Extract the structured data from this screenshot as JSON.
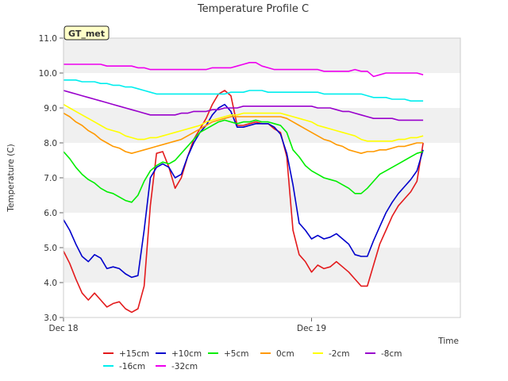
{
  "chart_data": {
    "type": "line",
    "title": "Temperature Profile C",
    "xlabel": "Time",
    "ylabel": "Temperature (C)",
    "xlim": [
      0,
      1.6
    ],
    "ylim": [
      3.0,
      11.0
    ],
    "yticks": [
      "3.0",
      "4.0",
      "5.0",
      "6.0",
      "7.0",
      "8.0",
      "9.0",
      "10.0",
      "11.0"
    ],
    "xticks": [
      {
        "label": "Dec 18",
        "value": 0
      },
      {
        "label": "Dec 19",
        "value": 1
      }
    ],
    "grid": "horizontal bands",
    "legend_position": "bottom",
    "annotation": "GT_met",
    "x": [
      0.0,
      0.025,
      0.05,
      0.075,
      0.1,
      0.125,
      0.15,
      0.175,
      0.2,
      0.225,
      0.25,
      0.275,
      0.3,
      0.325,
      0.35,
      0.375,
      0.4,
      0.425,
      0.45,
      0.475,
      0.5,
      0.525,
      0.55,
      0.575,
      0.6,
      0.625,
      0.65,
      0.675,
      0.7,
      0.725,
      0.75,
      0.775,
      0.8,
      0.825,
      0.85,
      0.875,
      0.9,
      0.925,
      0.95,
      0.975,
      1.0,
      1.025,
      1.05,
      1.075,
      1.1,
      1.125,
      1.15,
      1.175,
      1.2,
      1.225,
      1.25,
      1.275,
      1.3,
      1.325,
      1.35,
      1.375,
      1.4,
      1.425,
      1.45
    ],
    "series": [
      {
        "name": "+15cm",
        "color": "#e31a1c",
        "values": [
          4.9,
          4.55,
          4.1,
          3.7,
          3.5,
          3.7,
          3.5,
          3.3,
          3.4,
          3.45,
          3.25,
          3.15,
          3.25,
          3.9,
          6.2,
          7.7,
          7.75,
          7.3,
          6.7,
          7.0,
          7.6,
          8.1,
          8.4,
          8.7,
          9.1,
          9.4,
          9.5,
          9.35,
          8.5,
          8.5,
          8.55,
          8.6,
          8.55,
          8.55,
          8.4,
          8.3,
          7.6,
          5.5,
          4.8,
          4.6,
          4.3,
          4.5,
          4.4,
          4.45,
          4.6,
          4.45,
          4.3,
          4.1,
          3.9,
          3.9,
          4.5,
          5.1,
          5.5,
          5.9,
          6.2,
          6.4,
          6.6,
          6.9,
          8.0
        ]
      },
      {
        "name": "+10cm",
        "color": "#0000cc",
        "values": [
          5.8,
          5.5,
          5.1,
          4.75,
          4.6,
          4.8,
          4.7,
          4.4,
          4.45,
          4.4,
          4.25,
          4.15,
          4.2,
          5.5,
          7.0,
          7.3,
          7.4,
          7.3,
          7.0,
          7.1,
          7.6,
          8.0,
          8.3,
          8.5,
          8.8,
          9.0,
          9.1,
          8.9,
          8.45,
          8.45,
          8.5,
          8.55,
          8.55,
          8.55,
          8.45,
          8.25,
          7.7,
          6.8,
          5.7,
          5.5,
          5.25,
          5.35,
          5.25,
          5.3,
          5.4,
          5.25,
          5.1,
          4.8,
          4.75,
          4.75,
          5.2,
          5.6,
          6.0,
          6.3,
          6.55,
          6.75,
          6.95,
          7.2,
          7.8
        ]
      },
      {
        "name": "+5cm",
        "color": "#00ee00",
        "values": [
          7.75,
          7.55,
          7.3,
          7.1,
          6.95,
          6.85,
          6.7,
          6.6,
          6.55,
          6.45,
          6.35,
          6.3,
          6.5,
          6.9,
          7.2,
          7.35,
          7.45,
          7.4,
          7.5,
          7.7,
          7.9,
          8.1,
          8.3,
          8.4,
          8.5,
          8.6,
          8.65,
          8.6,
          8.55,
          8.6,
          8.6,
          8.65,
          8.6,
          8.6,
          8.55,
          8.5,
          8.3,
          7.8,
          7.6,
          7.35,
          7.2,
          7.1,
          7.0,
          6.95,
          6.9,
          6.8,
          6.7,
          6.55,
          6.55,
          6.7,
          6.9,
          7.1,
          7.2,
          7.3,
          7.4,
          7.5,
          7.6,
          7.7,
          7.75
        ]
      },
      {
        "name": "0cm",
        "color": "#ff9900",
        "values": [
          8.85,
          8.75,
          8.6,
          8.5,
          8.35,
          8.25,
          8.1,
          8.0,
          7.9,
          7.85,
          7.75,
          7.7,
          7.75,
          7.8,
          7.85,
          7.9,
          7.95,
          8.0,
          8.05,
          8.1,
          8.2,
          8.3,
          8.4,
          8.5,
          8.6,
          8.65,
          8.7,
          8.75,
          8.75,
          8.75,
          8.75,
          8.75,
          8.75,
          8.75,
          8.75,
          8.75,
          8.7,
          8.6,
          8.5,
          8.4,
          8.3,
          8.2,
          8.1,
          8.05,
          7.95,
          7.9,
          7.8,
          7.75,
          7.7,
          7.75,
          7.75,
          7.8,
          7.8,
          7.85,
          7.9,
          7.9,
          7.95,
          8.0,
          8.0
        ]
      },
      {
        "name": "-2cm",
        "color": "#ffff00",
        "values": [
          9.1,
          9.0,
          8.9,
          8.8,
          8.7,
          8.6,
          8.5,
          8.4,
          8.35,
          8.3,
          8.2,
          8.15,
          8.1,
          8.1,
          8.15,
          8.15,
          8.2,
          8.25,
          8.3,
          8.35,
          8.4,
          8.45,
          8.5,
          8.6,
          8.65,
          8.7,
          8.75,
          8.8,
          8.8,
          8.85,
          8.85,
          8.85,
          8.85,
          8.85,
          8.85,
          8.85,
          8.8,
          8.75,
          8.7,
          8.65,
          8.6,
          8.5,
          8.45,
          8.4,
          8.35,
          8.3,
          8.25,
          8.2,
          8.1,
          8.05,
          8.05,
          8.05,
          8.05,
          8.05,
          8.1,
          8.1,
          8.15,
          8.15,
          8.2
        ]
      },
      {
        "name": "-8cm",
        "color": "#9900cc",
        "values": [
          9.5,
          9.45,
          9.4,
          9.35,
          9.3,
          9.25,
          9.2,
          9.15,
          9.1,
          9.05,
          9.0,
          8.95,
          8.9,
          8.85,
          8.8,
          8.8,
          8.8,
          8.8,
          8.8,
          8.85,
          8.85,
          8.9,
          8.9,
          8.9,
          8.95,
          8.95,
          9.0,
          9.0,
          9.0,
          9.05,
          9.05,
          9.05,
          9.05,
          9.05,
          9.05,
          9.05,
          9.05,
          9.05,
          9.05,
          9.05,
          9.05,
          9.0,
          9.0,
          9.0,
          8.95,
          8.9,
          8.9,
          8.85,
          8.8,
          8.75,
          8.7,
          8.7,
          8.7,
          8.7,
          8.65,
          8.65,
          8.65,
          8.65,
          8.65
        ]
      },
      {
        "name": "-16cm",
        "color": "#00eeee",
        "values": [
          9.8,
          9.8,
          9.8,
          9.75,
          9.75,
          9.75,
          9.7,
          9.7,
          9.65,
          9.65,
          9.6,
          9.6,
          9.55,
          9.5,
          9.45,
          9.4,
          9.4,
          9.4,
          9.4,
          9.4,
          9.4,
          9.4,
          9.4,
          9.4,
          9.4,
          9.4,
          9.4,
          9.45,
          9.45,
          9.45,
          9.5,
          9.5,
          9.5,
          9.45,
          9.45,
          9.45,
          9.45,
          9.45,
          9.45,
          9.45,
          9.45,
          9.45,
          9.4,
          9.4,
          9.4,
          9.4,
          9.4,
          9.4,
          9.4,
          9.35,
          9.3,
          9.3,
          9.3,
          9.25,
          9.25,
          9.25,
          9.2,
          9.2,
          9.2
        ]
      },
      {
        "name": "-32cm",
        "color": "#ee00ee",
        "values": [
          10.25,
          10.25,
          10.25,
          10.25,
          10.25,
          10.25,
          10.25,
          10.2,
          10.2,
          10.2,
          10.2,
          10.2,
          10.15,
          10.15,
          10.1,
          10.1,
          10.1,
          10.1,
          10.1,
          10.1,
          10.1,
          10.1,
          10.1,
          10.1,
          10.15,
          10.15,
          10.15,
          10.15,
          10.2,
          10.25,
          10.3,
          10.3,
          10.2,
          10.15,
          10.1,
          10.1,
          10.1,
          10.1,
          10.1,
          10.1,
          10.1,
          10.1,
          10.05,
          10.05,
          10.05,
          10.05,
          10.05,
          10.1,
          10.05,
          10.05,
          9.9,
          9.95,
          10.0,
          10.0,
          10.0,
          10.0,
          10.0,
          10.0,
          9.95
        ]
      }
    ]
  }
}
